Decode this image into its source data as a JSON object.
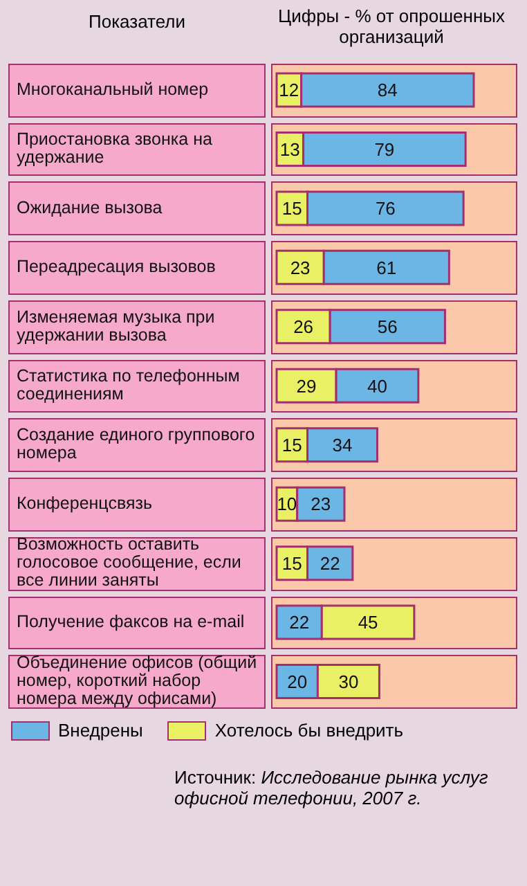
{
  "chart_data": {
    "type": "bar",
    "orientation": "horizontal",
    "stacked": true,
    "data_labels": true,
    "legend": "bottom left",
    "ylabel": "Показатели",
    "xlabel": "Цифры - % от опрошенных организаций",
    "categories": [
      "Многоканальный номер",
      "Приостановка звонка на удержание",
      "Ожидание вызова",
      "Переадресация вызовов",
      "Изменяемая музыка при удержании вызова",
      "Статистика по телефонным соединениям",
      "Создание единого группового номера",
      "Конференцсвязь",
      "Возможность оставить голосовое сообщение, если все линии заняты",
      "Получение факсов на e-mail",
      "Объединение офисов (общий номер, короткий набор номера между офисами)"
    ],
    "series": [
      {
        "name": "Внедрены",
        "color": "#6cb6e6",
        "values": [
          null,
          null,
          null,
          null,
          null,
          null,
          null,
          null,
          null,
          22,
          20
        ]
      },
      {
        "name": "Хотелось бы внедрить",
        "color": "#e9f064",
        "values": [
          12,
          13,
          15,
          23,
          26,
          29,
          15,
          10,
          15,
          45,
          30
        ]
      },
      {
        "color": "#6cb6e6",
        "values": [
          84,
          79,
          76,
          61,
          56,
          40,
          34,
          23,
          22,
          null,
          null
        ]
      }
    ],
    "annotations": [
      "Источник: Исследование рынка услуг офисной телефонии, 2007 г."
    ]
  }
}
